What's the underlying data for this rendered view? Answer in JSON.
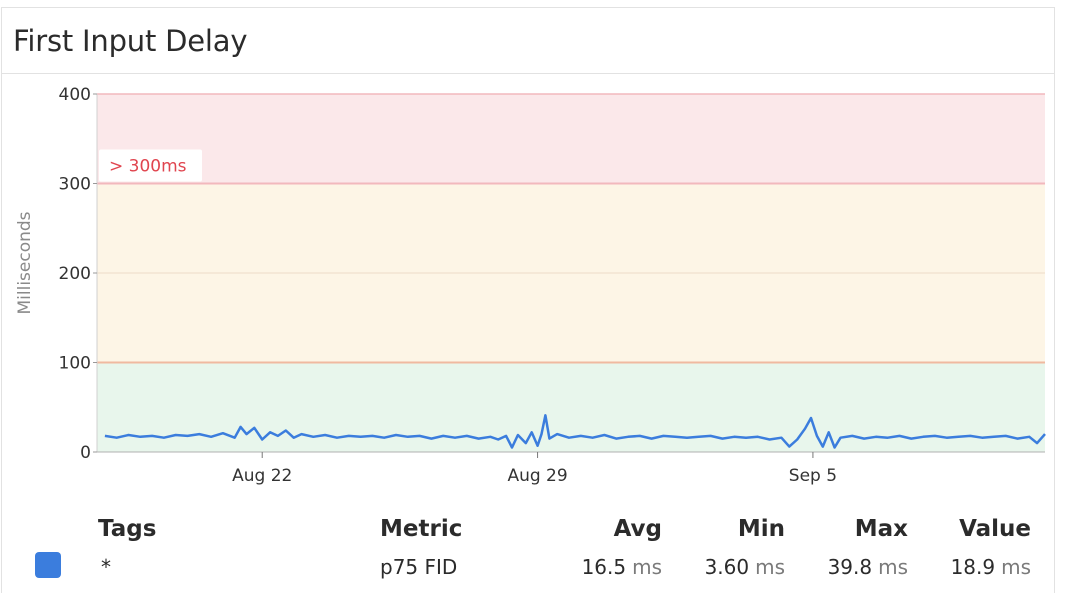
{
  "widget": {
    "title": "First Input Delay"
  },
  "chart_data": {
    "type": "line",
    "ylabel": "Milliseconds",
    "ylim": [
      0,
      400
    ],
    "yticks": [
      0,
      100,
      200,
      300,
      400
    ],
    "xtick_labels": [
      {
        "label": "Aug 22",
        "x": 5.0
      },
      {
        "label": "Aug 29",
        "x": 12.0
      },
      {
        "label": "Sep 5",
        "x": 19.0
      }
    ],
    "x_range": [
      0.8,
      24.9
    ],
    "bands": [
      {
        "from": 0,
        "to": 100,
        "fill": "#e8f6ec",
        "line": "#b9dca0"
      },
      {
        "from": 100,
        "to": 300,
        "fill": "#fdf5e6",
        "line": "#f0b9a0"
      },
      {
        "from": 300,
        "to": 400,
        "fill": "#fbe8ea",
        "line": "#f2b8bd"
      }
    ],
    "threshold_label": "> 300ms",
    "threshold_label_color": "#e0454f",
    "grid": true,
    "series": [
      {
        "color": "#3b7ddd",
        "points": [
          [
            1.0,
            18
          ],
          [
            1.3,
            16
          ],
          [
            1.6,
            19
          ],
          [
            1.9,
            17
          ],
          [
            2.2,
            18
          ],
          [
            2.5,
            16
          ],
          [
            2.8,
            19
          ],
          [
            3.1,
            18
          ],
          [
            3.4,
            20
          ],
          [
            3.7,
            17
          ],
          [
            4.0,
            21
          ],
          [
            4.3,
            16
          ],
          [
            4.45,
            28
          ],
          [
            4.6,
            20
          ],
          [
            4.8,
            27
          ],
          [
            5.0,
            14
          ],
          [
            5.2,
            22
          ],
          [
            5.4,
            18
          ],
          [
            5.6,
            24
          ],
          [
            5.8,
            16
          ],
          [
            6.0,
            20
          ],
          [
            6.3,
            17
          ],
          [
            6.6,
            19
          ],
          [
            6.9,
            16
          ],
          [
            7.2,
            18
          ],
          [
            7.5,
            17
          ],
          [
            7.8,
            18
          ],
          [
            8.1,
            16
          ],
          [
            8.4,
            19
          ],
          [
            8.7,
            17
          ],
          [
            9.0,
            18
          ],
          [
            9.3,
            15
          ],
          [
            9.6,
            18
          ],
          [
            9.9,
            16
          ],
          [
            10.2,
            18
          ],
          [
            10.5,
            15
          ],
          [
            10.8,
            17
          ],
          [
            11.0,
            14
          ],
          [
            11.2,
            18
          ],
          [
            11.35,
            5
          ],
          [
            11.5,
            19
          ],
          [
            11.7,
            10
          ],
          [
            11.85,
            22
          ],
          [
            12.0,
            7
          ],
          [
            12.1,
            20
          ],
          [
            12.2,
            41
          ],
          [
            12.3,
            15
          ],
          [
            12.5,
            20
          ],
          [
            12.8,
            16
          ],
          [
            13.1,
            18
          ],
          [
            13.4,
            16
          ],
          [
            13.7,
            19
          ],
          [
            14.0,
            15
          ],
          [
            14.3,
            17
          ],
          [
            14.6,
            18
          ],
          [
            14.9,
            15
          ],
          [
            15.2,
            18
          ],
          [
            15.5,
            17
          ],
          [
            15.8,
            16
          ],
          [
            16.1,
            17
          ],
          [
            16.4,
            18
          ],
          [
            16.7,
            15
          ],
          [
            17.0,
            17
          ],
          [
            17.3,
            16
          ],
          [
            17.6,
            17
          ],
          [
            17.9,
            14
          ],
          [
            18.2,
            16
          ],
          [
            18.4,
            6
          ],
          [
            18.6,
            14
          ],
          [
            18.8,
            26
          ],
          [
            18.95,
            38
          ],
          [
            19.1,
            18
          ],
          [
            19.25,
            6
          ],
          [
            19.4,
            22
          ],
          [
            19.55,
            5
          ],
          [
            19.7,
            16
          ],
          [
            20.0,
            18
          ],
          [
            20.3,
            15
          ],
          [
            20.6,
            17
          ],
          [
            20.9,
            16
          ],
          [
            21.2,
            18
          ],
          [
            21.5,
            15
          ],
          [
            21.8,
            17
          ],
          [
            22.1,
            18
          ],
          [
            22.4,
            16
          ],
          [
            22.7,
            17
          ],
          [
            23.0,
            18
          ],
          [
            23.3,
            16
          ],
          [
            23.6,
            17
          ],
          [
            23.9,
            18
          ],
          [
            24.2,
            15
          ],
          [
            24.5,
            17
          ],
          [
            24.7,
            10
          ],
          [
            24.9,
            20
          ]
        ]
      }
    ]
  },
  "legend": {
    "headers": {
      "tags": "Tags",
      "metric": "Metric",
      "avg": "Avg",
      "min": "Min",
      "max": "Max",
      "value": "Value"
    },
    "row": {
      "swatch_color": "#3b7ddd",
      "tag": "*",
      "metric": "p75 FID",
      "avg": "16.5",
      "min": "3.60",
      "max": "39.8",
      "value": "18.9",
      "unit": "ms"
    }
  }
}
